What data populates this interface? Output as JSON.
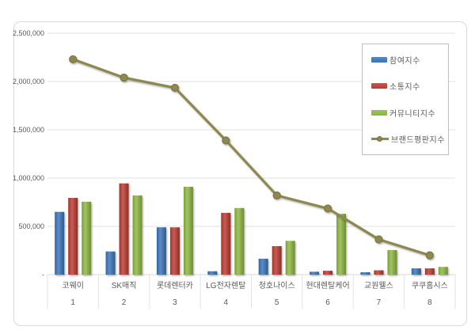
{
  "chart_data": {
    "type": "combo",
    "title": "",
    "categories": [
      "코웨이",
      "SK매직",
      "롯데렌터카",
      "LG전자렌탈",
      "청호나이스",
      "현대렌탈케어",
      "교원웰스",
      "쿠쿠홈시스"
    ],
    "ranks": [
      "1",
      "2",
      "3",
      "4",
      "5",
      "6",
      "7",
      "8"
    ],
    "y_axis": {
      "min": 0,
      "max": 2500000,
      "step": 500000,
      "zero_label": "-"
    },
    "series": [
      {
        "name": "참여지수",
        "type": "bar",
        "color": "#3873b9",
        "values": [
          650000,
          240000,
          490000,
          35000,
          165000,
          30000,
          25000,
          65000
        ]
      },
      {
        "name": "소통지수",
        "type": "bar",
        "color": "#b93a30",
        "values": [
          795000,
          945000,
          490000,
          640000,
          295000,
          40000,
          45000,
          65000
        ]
      },
      {
        "name": "커뮤니티지수",
        "type": "bar",
        "color": "#8cb63f",
        "values": [
          755000,
          820000,
          910000,
          690000,
          350000,
          630000,
          255000,
          80000
        ]
      },
      {
        "name": "브랜드평판지수",
        "type": "line",
        "color": "#8d8850",
        "values": [
          2230000,
          2040000,
          1935000,
          1390000,
          820000,
          685000,
          365000,
          200000
        ]
      }
    ],
    "grid": true,
    "legend_position": "right-top"
  },
  "colors": {
    "grid": "#e2e2e2",
    "axis_line": "#d9d9d9",
    "axis_text": "#595959",
    "frame_border": "#d9d9d9",
    "legend_border": "#bfbfbf",
    "background": "#ffffff"
  }
}
